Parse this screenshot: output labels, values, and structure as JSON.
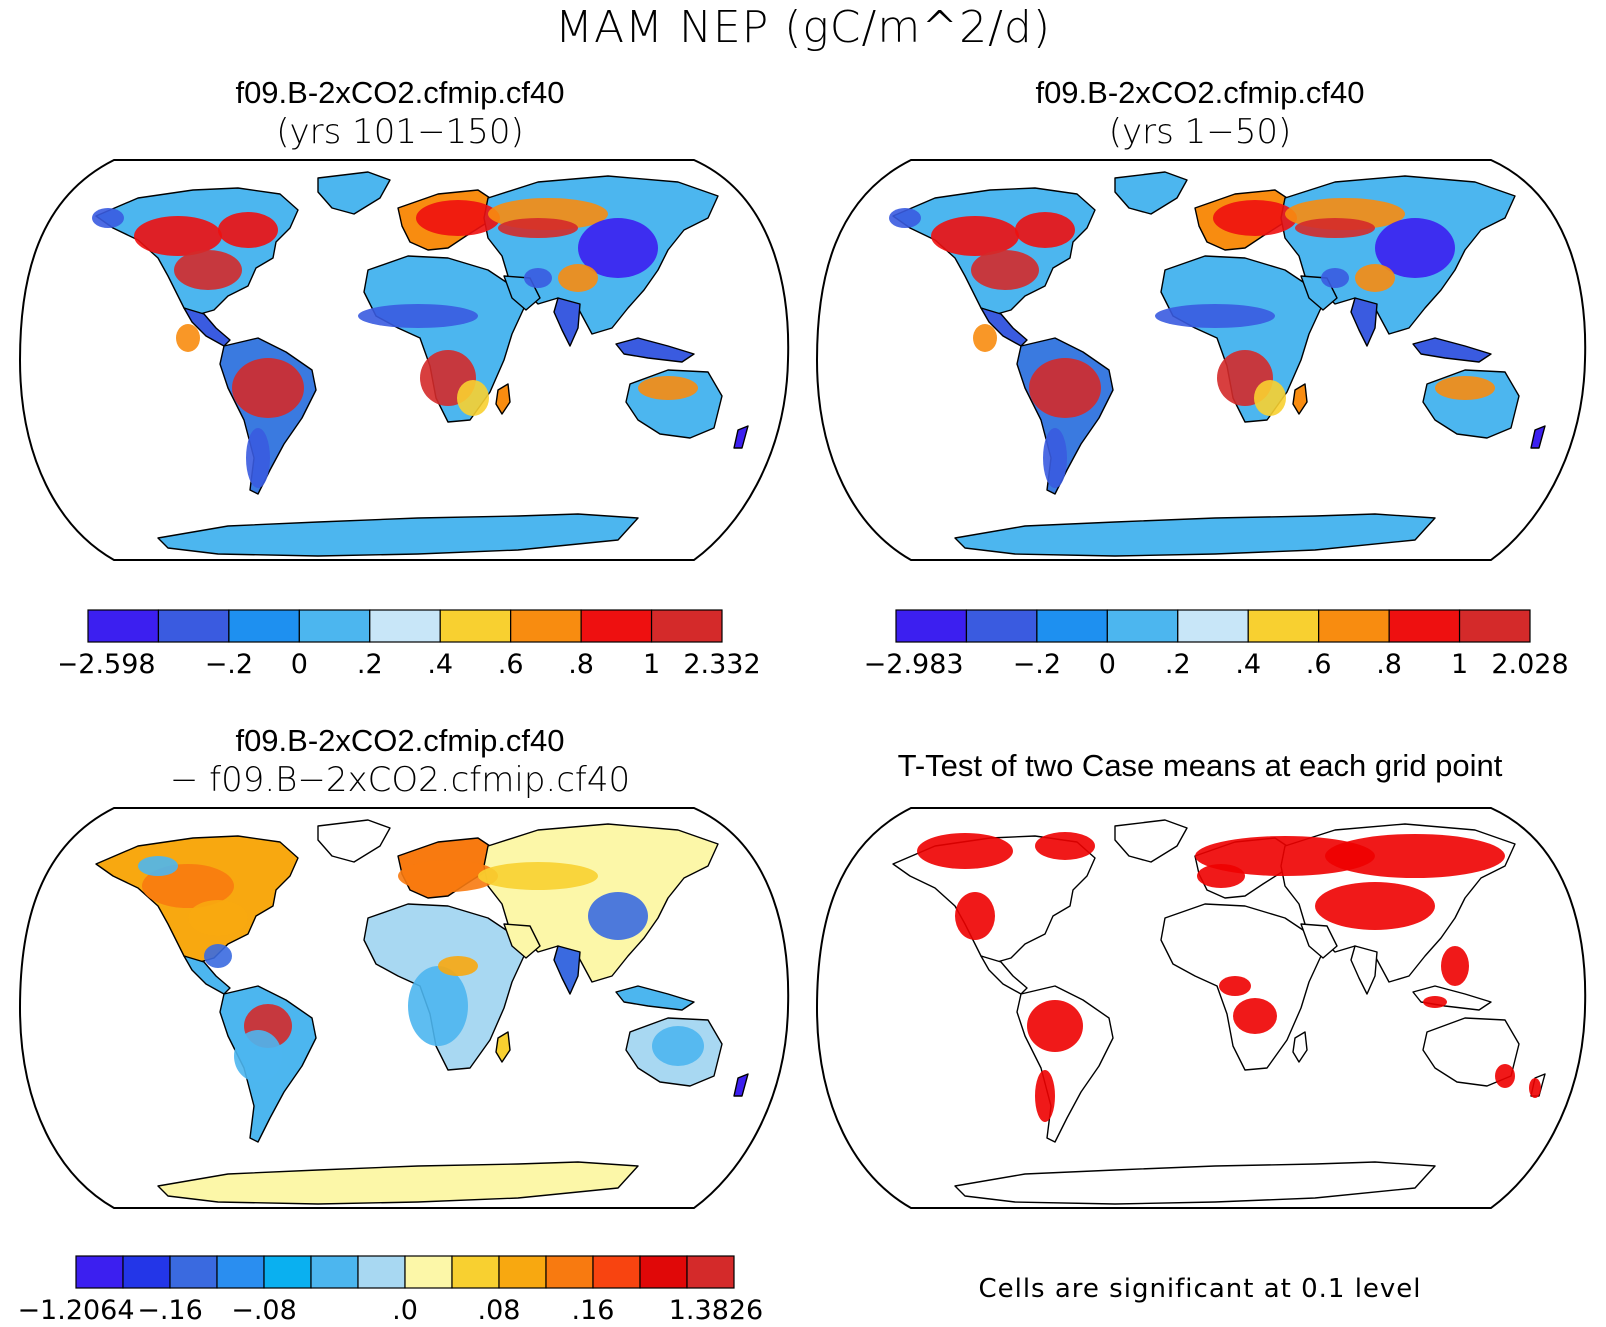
{
  "title": "MAM NEP (gC/m^2/d)",
  "panels": [
    {
      "id": "top-left",
      "title_line1": "f09.B-2xCO2.cfmip.cf40",
      "title_line2": "(yrs 101−150)",
      "colorbar": {
        "colors": [
          "#3c1ff0",
          "#3a5be0",
          "#1e90f0",
          "#4cb6ef",
          "#c8e6f8",
          "#f8d030",
          "#f88c10",
          "#ee1010",
          "#d42a2a"
        ],
        "labels": [
          "−2.598",
          "−.2",
          "0",
          ".2",
          ".4",
          ".6",
          ".8",
          "1",
          "2.332"
        ]
      }
    },
    {
      "id": "top-right",
      "title_line1": "f09.B-2xCO2.cfmip.cf40",
      "title_line2": "(yrs 1−50)",
      "colorbar": {
        "colors": [
          "#3c1ff0",
          "#3a5be0",
          "#1e90f0",
          "#4cb6ef",
          "#c8e6f8",
          "#f8d030",
          "#f88c10",
          "#ee1010",
          "#d42a2a"
        ],
        "labels": [
          "−2.983",
          "−.2",
          "0",
          ".2",
          ".4",
          ".6",
          ".8",
          "1",
          "2.028"
        ]
      }
    },
    {
      "id": "bottom-left",
      "title_line1": "f09.B-2xCO2.cfmip.cf40",
      "title_line2": "− f09.B−2xCO2.cfmip.cf40",
      "colorbar": {
        "colors": [
          "#3c1ff0",
          "#2336e8",
          "#3a6ae0",
          "#2a8ef0",
          "#0ab0f0",
          "#4cb6ef",
          "#a8d8f2",
          "#fcf7a8",
          "#f8d030",
          "#f8a810",
          "#f87a10",
          "#f84410",
          "#e00808",
          "#d42a2a"
        ],
        "labels": [
          "−1.2064",
          "−.16",
          "−.08",
          ".0",
          ".08",
          ".16",
          "1.3826"
        ]
      }
    },
    {
      "id": "bottom-right",
      "title_line1": "T-Test of two Case means at each grid point",
      "note": "Cells are significant at 0.1 level",
      "significant_color": "#ee0000"
    }
  ]
}
